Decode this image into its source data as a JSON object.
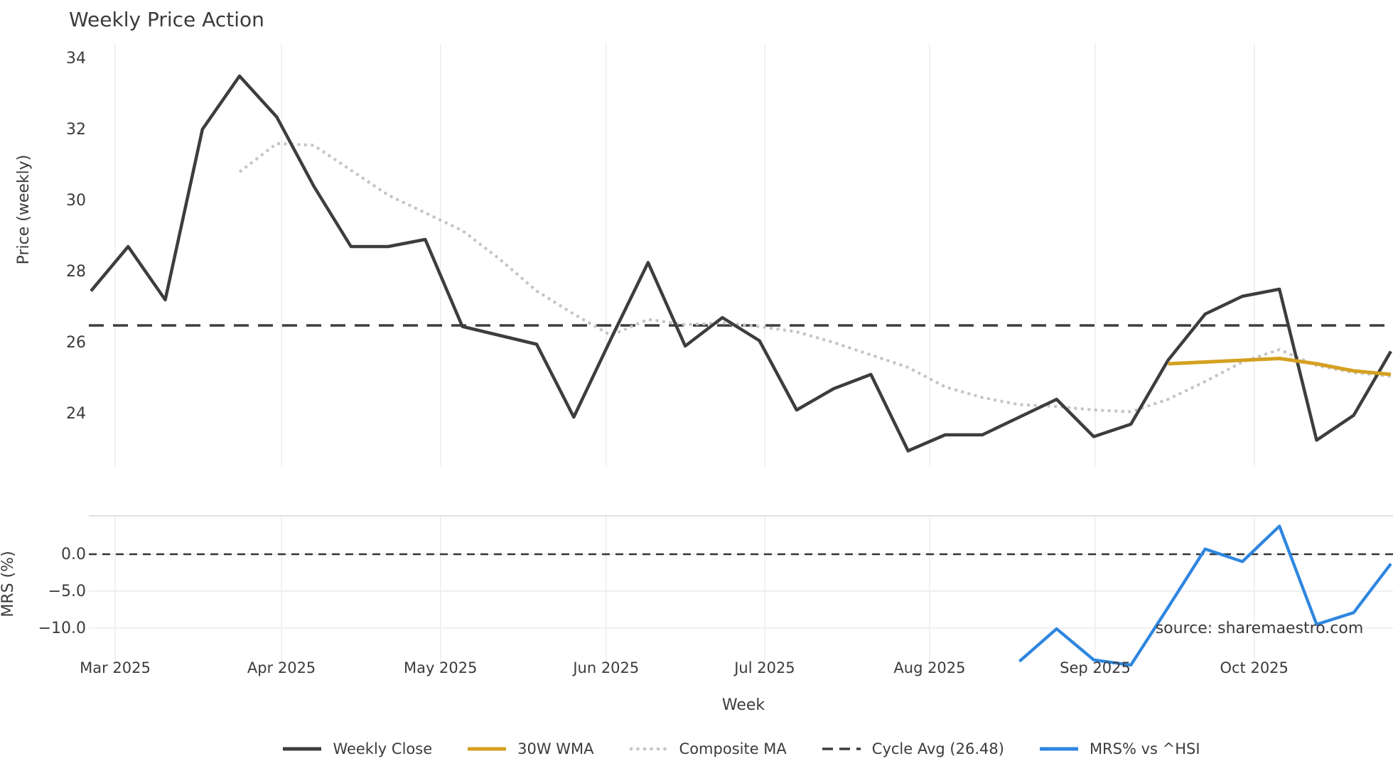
{
  "title": "Weekly Price Action",
  "source_note": "source: sharemaestro.com",
  "colors": {
    "weekly_close": "#3d3d3d",
    "wma_30w": "#d5a021",
    "composite_ma": "#c4c4c4",
    "cycle_avg": "#3d3d3d",
    "mrs_line": "#2e86e0",
    "gridline": "#ececf1",
    "panel_border": "#d9d9de",
    "tick_text": "#3b3b3b",
    "source_text": "#9b9b9b"
  },
  "chart_data": [
    {
      "type": "line",
      "panel": "price",
      "title": "Weekly Price Action",
      "ylabel": "Price (weekly)",
      "yticks": [
        34,
        32,
        30,
        28,
        26,
        24
      ],
      "ylim": [
        22.5,
        34.4
      ],
      "grid": "vertical-months",
      "x_month_ticks": {
        "labels": [
          "Mar 2025",
          "Apr 2025",
          "May 2025",
          "Jun 2025",
          "Jul 2025",
          "Aug 2025",
          "Sep 2025",
          "Oct 2025"
        ],
        "week_positions": [
          0.65,
          5.13,
          9.41,
          13.87,
          18.14,
          22.58,
          27.04,
          31.32
        ]
      },
      "n_weeks": 36,
      "series": [
        {
          "name": "Weekly Close",
          "style": "solid",
          "start_index": 0,
          "values": [
            27.45,
            28.7,
            27.2,
            32.0,
            33.5,
            32.35,
            30.4,
            28.7,
            28.7,
            28.9,
            26.45,
            26.2,
            25.95,
            23.9,
            26.1,
            28.25,
            25.9,
            26.7,
            26.05,
            24.1,
            24.7,
            25.1,
            22.95,
            23.4,
            23.4,
            23.9,
            24.4,
            23.35,
            23.7,
            25.5,
            26.8,
            27.3,
            27.5,
            23.25,
            23.95,
            25.75
          ]
        },
        {
          "name": "30W WMA",
          "style": "solid",
          "start_index": 29,
          "values": [
            25.4,
            25.45,
            25.5,
            25.55,
            25.4,
            25.2,
            25.1
          ]
        },
        {
          "name": "Composite MA",
          "style": "dotted",
          "start_index": 4,
          "values": [
            30.8,
            31.6,
            31.55,
            30.85,
            30.15,
            29.65,
            29.15,
            28.35,
            27.45,
            26.8,
            26.2,
            26.65,
            26.5,
            26.55,
            26.45,
            26.3,
            26.0,
            25.65,
            25.3,
            24.75,
            24.45,
            24.25,
            24.2,
            24.1,
            24.05,
            24.4,
            24.9,
            25.45,
            25.8,
            25.35,
            25.15,
            25.05
          ]
        },
        {
          "name": "Cycle Avg (26.48)",
          "style": "dashed-horizontal",
          "value": 26.48
        }
      ]
    },
    {
      "type": "line",
      "panel": "mrs",
      "ylabel": "MRS (%)",
      "xlabel": "Week",
      "ytick_labels": [
        "0.0",
        "−5.0",
        "−10.0"
      ],
      "ytick_values": [
        0,
        -5,
        -10
      ],
      "ylim": [
        -16.2,
        5.2
      ],
      "zero_line": 0.0,
      "series": [
        {
          "name": "MRS% vs ^HSI",
          "style": "solid",
          "start_index": 25,
          "values": [
            -14.5,
            -10.1,
            -14.3,
            -15.0,
            -7.2,
            0.7,
            -1.0,
            3.8,
            -9.5,
            -7.9,
            -1.3
          ]
        }
      ]
    }
  ],
  "legend": [
    {
      "label": "Weekly Close",
      "swatch": "solid",
      "color": "#3d3d3d"
    },
    {
      "label": "30W WMA",
      "swatch": "solid",
      "color": "#d5a021"
    },
    {
      "label": "Composite MA",
      "swatch": "dotted",
      "color": "#c4c4c4"
    },
    {
      "label": "Cycle Avg (26.48)",
      "swatch": "dashed",
      "color": "#3d3d3d"
    },
    {
      "label": "MRS% vs ^HSI",
      "swatch": "solid",
      "color": "#2e86e0"
    }
  ]
}
